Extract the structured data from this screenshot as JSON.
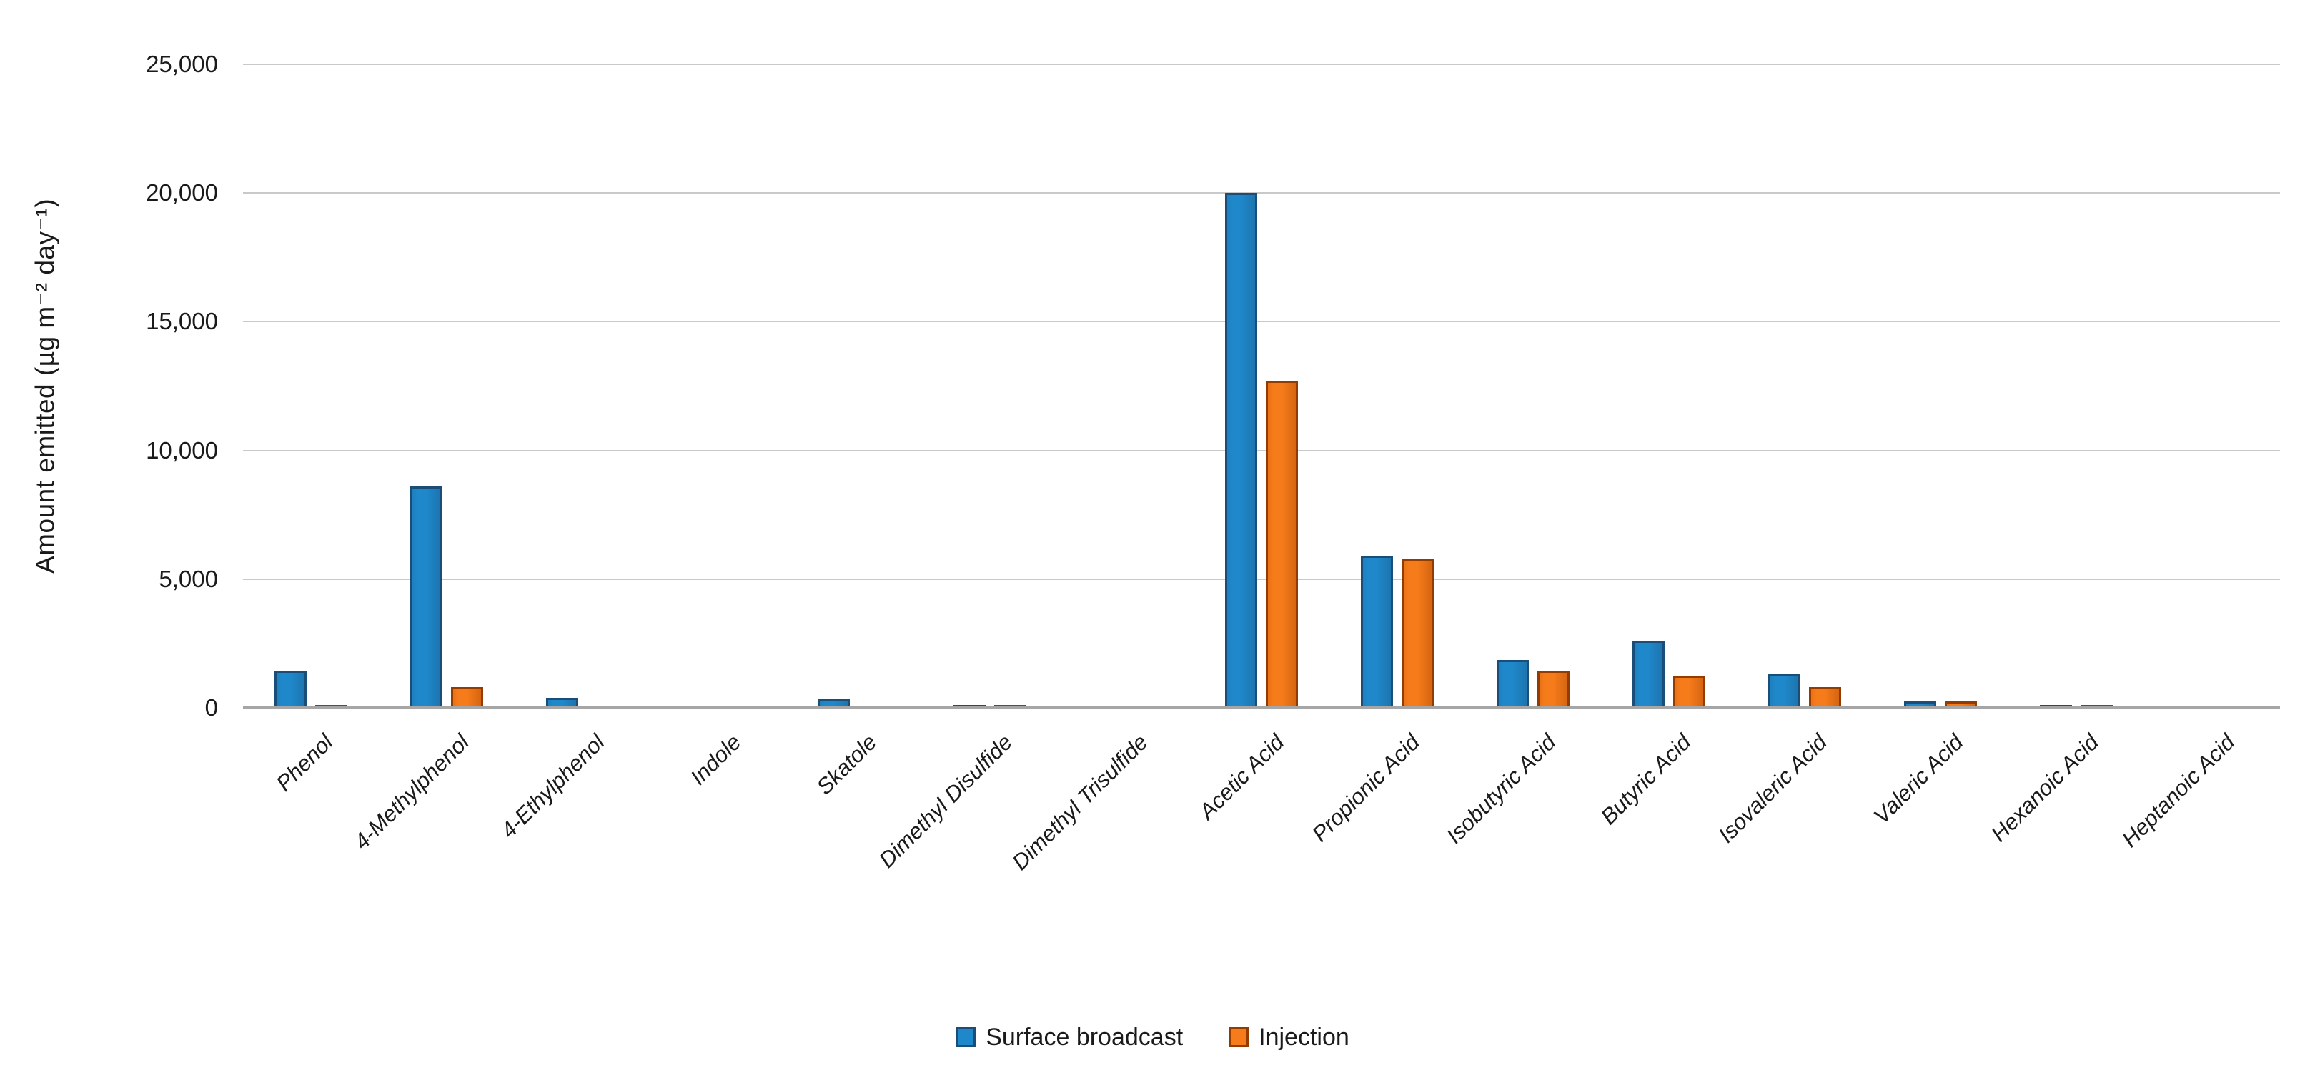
{
  "chart_data": {
    "type": "bar",
    "title": "",
    "xlabel": "",
    "ylabel": "Amount emitted (µg m⁻² day⁻¹)",
    "ylim": [
      0,
      25000
    ],
    "ytick_step": 5000,
    "ytick_labels": [
      "0",
      "5,000",
      "10,000",
      "15,000",
      "20,000",
      "25,000"
    ],
    "grid": true,
    "legend_position": "bottom-center",
    "categories": [
      "Phenol",
      "4-Methylphenol",
      "4-Ethylphenol",
      "Indole",
      "Skatole",
      "Dimethyl Disulfide",
      "Dimethyl Trisulfide",
      "Acetic Acid",
      "Propionic Acid",
      "Isobutyric Acid",
      "Butyric Acid",
      "Isovaleric Acid",
      "Valeric Acid",
      "Hexanoic Acid",
      "Heptanoic Acid"
    ],
    "series": [
      {
        "name": "Surface broadcast",
        "fill": "#1f88ca",
        "border": "#1a4e79",
        "values": [
          1450,
          8600,
          400,
          0,
          350,
          100,
          0,
          20000,
          5900,
          1850,
          2600,
          1300,
          250,
          100,
          0
        ]
      },
      {
        "name": "Injection",
        "fill": "#f67b1a",
        "border": "#943b00",
        "values": [
          100,
          800,
          0,
          0,
          0,
          120,
          0,
          12700,
          5800,
          1450,
          1250,
          800,
          250,
          120,
          0
        ]
      }
    ],
    "gridline_color": "#c9c9c9",
    "baseline_color": "#a6a6a6"
  }
}
